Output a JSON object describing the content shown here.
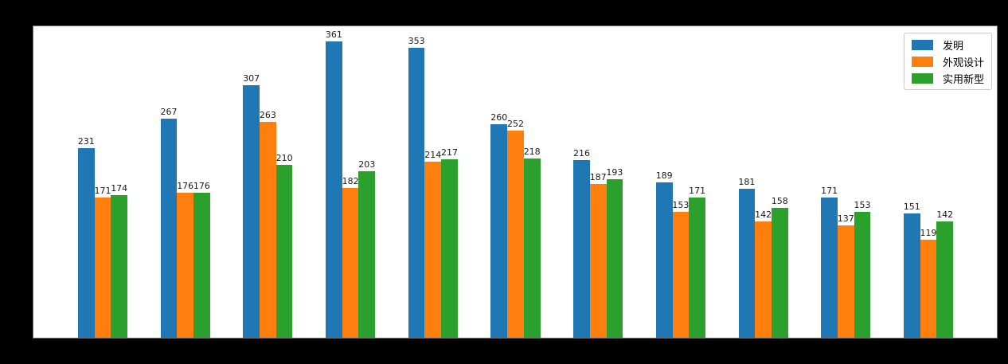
{
  "figure": {
    "background_color": "#000000",
    "plot_background_color": "#ffffff"
  },
  "legend": {
    "position": "upper-right",
    "items": [
      {
        "label": "发明",
        "color": "#1f77b4"
      },
      {
        "label": "外观设计",
        "color": "#ff7f0e"
      },
      {
        "label": "实用新型",
        "color": "#2ca02c"
      }
    ]
  },
  "chart_data": {
    "type": "bar",
    "title": "",
    "xlabel": "",
    "ylabel": "",
    "grid": false,
    "bar_value_labels": true,
    "legend_position": "upper right",
    "group_count": 11,
    "ylim": [
      0,
      379
    ],
    "series": [
      {
        "name": "发明",
        "color": "#1f77b4",
        "values": [
          231,
          267,
          307,
          361,
          353,
          260,
          216,
          189,
          181,
          171,
          151
        ]
      },
      {
        "name": "外观设计",
        "color": "#ff7f0e",
        "values": [
          171,
          176,
          263,
          182,
          214,
          252,
          187,
          153,
          142,
          137,
          119
        ]
      },
      {
        "name": "实用新型",
        "color": "#2ca02c",
        "values": [
          174,
          176,
          210,
          203,
          217,
          218,
          193,
          171,
          158,
          153,
          142
        ]
      }
    ]
  }
}
